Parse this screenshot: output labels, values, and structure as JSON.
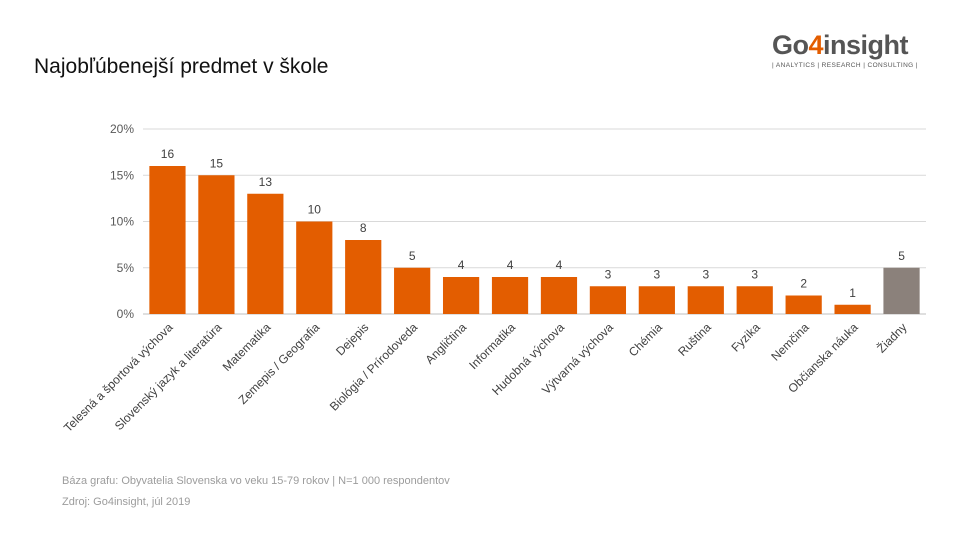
{
  "title": "Najobľúbenejší predmet v škole",
  "logo": {
    "text_a": "Go",
    "text_digit": "4",
    "text_b": "insight",
    "tagline": "| ANALYTICS | RESEARCH | CONSULTING |",
    "accent": "#e35d00"
  },
  "footnotes": {
    "base": "Báza grafu: Obyvatelia Slovenska vo veku 15-79 rokov | N=1 000 respondentov",
    "source": "Zdroj: Go4insight, júl 2019"
  },
  "chart_data": {
    "type": "bar",
    "title": "Najobľúbenejší predmet v škole",
    "xlabel": "",
    "ylabel": "",
    "ylim": [
      0,
      20
    ],
    "yticks": [
      0,
      5,
      10,
      15,
      20
    ],
    "ytick_labels": [
      "0%",
      "5%",
      "10%",
      "15%",
      "20%"
    ],
    "grid": true,
    "categories": [
      "Telesná a športová výchova",
      "Slovenský jazyk a literatúra",
      "Matematika",
      "Zemepis / Geografia",
      "Dejepis",
      "Biológia / Prírodoveda",
      "Angličtina",
      "Informatika",
      "Hudobná výchova",
      "Výtvarná výchova",
      "Chémia",
      "Ruština",
      "Fyzika",
      "Nemčina",
      "Občianska náuka",
      "Žiadny"
    ],
    "values": [
      16,
      15,
      13,
      10,
      8,
      5,
      4,
      4,
      4,
      3,
      3,
      3,
      3,
      2,
      1,
      5
    ],
    "colors": [
      "#e35d00",
      "#e35d00",
      "#e35d00",
      "#e35d00",
      "#e35d00",
      "#e35d00",
      "#e35d00",
      "#e35d00",
      "#e35d00",
      "#e35d00",
      "#e35d00",
      "#e35d00",
      "#e35d00",
      "#e35d00",
      "#e35d00",
      "#8b817b"
    ]
  }
}
